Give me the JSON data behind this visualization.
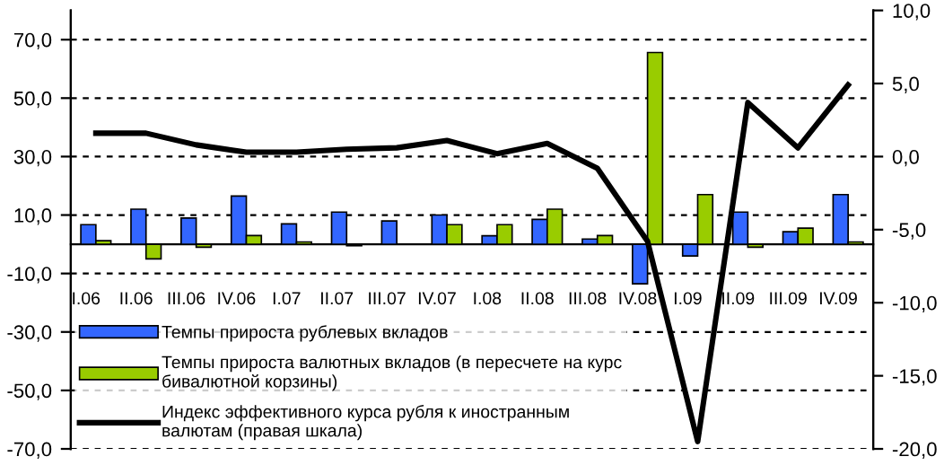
{
  "chart_data": {
    "type": "bar",
    "categories": [
      "I.06",
      "II.06",
      "III.06",
      "IV.06",
      "I.07",
      "II.07",
      "III.07",
      "IV.07",
      "I.08",
      "II.08",
      "III.08",
      "IV.08",
      "I.09",
      "II.09",
      "III.09",
      "IV.09"
    ],
    "series": [
      {
        "name": "Темпы прироста рублевых вкладов",
        "color": "#3366ff",
        "values": [
          6.7,
          12,
          9,
          16.5,
          7,
          11,
          8,
          10,
          2.9,
          8.5,
          1.8,
          -13.5,
          -4,
          11,
          4.3,
          17
        ]
      },
      {
        "name": "Темпы прироста валютных вкладов (в пересчете на курс\nбивалютной корзины)",
        "color": "#99cc00",
        "values": [
          1.2,
          -5,
          -1,
          3,
          0.8,
          -0.5,
          null,
          6.7,
          6.7,
          12,
          3,
          65.6,
          17,
          -1,
          5.5,
          0.8
        ]
      },
      {
        "name": "Индекс эффективного курса рубля к иностранным\nвалютам (правая шкала)",
        "type": "line",
        "axis": "y2",
        "color": "#000000",
        "values": [
          1.6,
          1.6,
          0.8,
          0.3,
          0.3,
          0.5,
          0.6,
          1.1,
          0.2,
          0.9,
          -0.8,
          -5.8,
          -19.5,
          3.7,
          0.6,
          4.9
        ]
      }
    ],
    "ylim": [
      -70,
      80
    ],
    "yticks": [
      {
        "value": -70,
        "label": "-70,0"
      },
      {
        "value": -50,
        "label": "-50,0"
      },
      {
        "value": -30,
        "label": "-30,0"
      },
      {
        "value": -10,
        "label": "-10,0"
      },
      {
        "value": 10,
        "label": "10,0"
      },
      {
        "value": 30,
        "label": "30,0"
      },
      {
        "value": 50,
        "label": "50,0"
      },
      {
        "value": 70,
        "label": "70,0"
      }
    ],
    "y2lim": [
      -20,
      10
    ],
    "y2ticks": [
      {
        "value": -20,
        "label": "-20,0"
      },
      {
        "value": -15,
        "label": "-15,0"
      },
      {
        "value": -10,
        "label": "-10,0"
      },
      {
        "value": -5,
        "label": "-5,0"
      },
      {
        "value": 0,
        "label": "0,0"
      },
      {
        "value": 5,
        "label": "5,0"
      },
      {
        "value": 10,
        "label": "10,0"
      }
    ],
    "grid": "y",
    "legend": "bottom left",
    "line_style": "solid",
    "marker": "none"
  }
}
